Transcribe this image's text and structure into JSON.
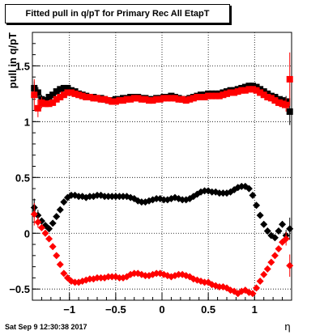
{
  "title": "Fitted pull in q/pT for Primary Rec All EtapT",
  "footer": "Sat Sep  9 12:30:38 2017",
  "chart_data": {
    "type": "scatter",
    "title": "Fitted pull in q/pT for Primary Rec All EtapT",
    "xlabel": "η",
    "ylabel": "pull in q/pT",
    "xlim": [
      -1.4,
      1.4
    ],
    "ylim": [
      -0.6,
      1.8
    ],
    "x_ticks": [
      -1,
      -0.5,
      0,
      0.5,
      1
    ],
    "x_tick_labels": [
      "−1",
      "−0.5",
      "0",
      "0.5",
      "1"
    ],
    "y_ticks": [
      -0.5,
      0,
      0.5,
      1,
      1.5
    ],
    "y_tick_labels": [
      "−0.5",
      "0",
      "0.5",
      "1",
      "1.5"
    ],
    "grid": true,
    "series": [
      {
        "color": "#000000",
        "marker": "square",
        "x": [
          -1.38,
          -1.34,
          -1.3,
          -1.26,
          -1.22,
          -1.18,
          -1.14,
          -1.1,
          -1.06,
          -1.02,
          -0.98,
          -0.94,
          -0.9,
          -0.86,
          -0.82,
          -0.78,
          -0.74,
          -0.7,
          -0.66,
          -0.62,
          -0.58,
          -0.54,
          -0.5,
          -0.46,
          -0.42,
          -0.38,
          -0.34,
          -0.3,
          -0.26,
          -0.22,
          -0.18,
          -0.14,
          -0.1,
          -0.06,
          -0.02,
          0.02,
          0.06,
          0.1,
          0.14,
          0.18,
          0.22,
          0.26,
          0.3,
          0.34,
          0.38,
          0.42,
          0.46,
          0.5,
          0.54,
          0.58,
          0.62,
          0.66,
          0.7,
          0.74,
          0.78,
          0.82,
          0.86,
          0.9,
          0.94,
          0.98,
          1.02,
          1.06,
          1.1,
          1.14,
          1.18,
          1.22,
          1.26,
          1.3,
          1.34,
          1.38
        ],
        "y": [
          1.3,
          1.26,
          1.2,
          1.19,
          1.22,
          1.24,
          1.27,
          1.29,
          1.3,
          1.3,
          1.28,
          1.27,
          1.25,
          1.24,
          1.23,
          1.22,
          1.22,
          1.21,
          1.21,
          1.2,
          1.19,
          1.19,
          1.2,
          1.2,
          1.21,
          1.21,
          1.22,
          1.22,
          1.22,
          1.21,
          1.21,
          1.2,
          1.2,
          1.21,
          1.21,
          1.22,
          1.22,
          1.23,
          1.22,
          1.21,
          1.2,
          1.2,
          1.21,
          1.22,
          1.23,
          1.24,
          1.24,
          1.25,
          1.25,
          1.25,
          1.25,
          1.26,
          1.27,
          1.28,
          1.28,
          1.29,
          1.3,
          1.31,
          1.32,
          1.32,
          1.31,
          1.29,
          1.27,
          1.25,
          1.23,
          1.22,
          1.2,
          1.19,
          1.18,
          1.09
        ],
        "err": [
          0.06,
          0.05,
          0.04,
          0.03,
          0.02,
          0.02,
          0.02,
          0.02,
          0.02,
          0.02,
          0.02,
          0.02,
          0.02,
          0.02,
          0.02,
          0.02,
          0.02,
          0.02,
          0.02,
          0.02,
          0.02,
          0.02,
          0.02,
          0.02,
          0.02,
          0.02,
          0.02,
          0.02,
          0.02,
          0.02,
          0.02,
          0.02,
          0.02,
          0.02,
          0.02,
          0.02,
          0.02,
          0.02,
          0.02,
          0.02,
          0.02,
          0.02,
          0.02,
          0.02,
          0.02,
          0.02,
          0.02,
          0.02,
          0.02,
          0.02,
          0.02,
          0.02,
          0.02,
          0.02,
          0.02,
          0.02,
          0.02,
          0.02,
          0.02,
          0.02,
          0.02,
          0.02,
          0.02,
          0.02,
          0.02,
          0.02,
          0.03,
          0.04,
          0.05,
          0.12
        ]
      },
      {
        "color": "#ff0000",
        "marker": "square",
        "x": [
          -1.38,
          -1.34,
          -1.3,
          -1.26,
          -1.22,
          -1.18,
          -1.14,
          -1.1,
          -1.06,
          -1.02,
          -0.98,
          -0.94,
          -0.9,
          -0.86,
          -0.82,
          -0.78,
          -0.74,
          -0.7,
          -0.66,
          -0.62,
          -0.58,
          -0.54,
          -0.5,
          -0.46,
          -0.42,
          -0.38,
          -0.34,
          -0.3,
          -0.26,
          -0.22,
          -0.18,
          -0.14,
          -0.1,
          -0.06,
          -0.02,
          0.02,
          0.06,
          0.1,
          0.14,
          0.18,
          0.22,
          0.26,
          0.3,
          0.34,
          0.38,
          0.42,
          0.46,
          0.5,
          0.54,
          0.58,
          0.62,
          0.66,
          0.7,
          0.74,
          0.78,
          0.82,
          0.86,
          0.9,
          0.94,
          0.98,
          1.02,
          1.06,
          1.1,
          1.14,
          1.18,
          1.22,
          1.26,
          1.3,
          1.34,
          1.38
        ],
        "y": [
          1.24,
          1.12,
          1.17,
          1.16,
          1.16,
          1.17,
          1.2,
          1.22,
          1.24,
          1.26,
          1.26,
          1.25,
          1.24,
          1.23,
          1.22,
          1.22,
          1.21,
          1.21,
          1.2,
          1.2,
          1.19,
          1.18,
          1.18,
          1.19,
          1.19,
          1.2,
          1.2,
          1.21,
          1.21,
          1.2,
          1.2,
          1.19,
          1.19,
          1.2,
          1.2,
          1.21,
          1.21,
          1.21,
          1.21,
          1.2,
          1.2,
          1.19,
          1.2,
          1.21,
          1.22,
          1.22,
          1.22,
          1.23,
          1.23,
          1.23,
          1.23,
          1.24,
          1.25,
          1.26,
          1.26,
          1.27,
          1.28,
          1.28,
          1.29,
          1.29,
          1.28,
          1.26,
          1.24,
          1.22,
          1.21,
          1.19,
          1.17,
          1.16,
          1.15,
          1.38
        ],
        "err": [
          0.14,
          0.08,
          0.05,
          0.03,
          0.02,
          0.02,
          0.02,
          0.02,
          0.02,
          0.02,
          0.02,
          0.02,
          0.02,
          0.02,
          0.02,
          0.02,
          0.02,
          0.02,
          0.02,
          0.02,
          0.02,
          0.02,
          0.02,
          0.02,
          0.02,
          0.02,
          0.02,
          0.02,
          0.02,
          0.02,
          0.02,
          0.02,
          0.02,
          0.02,
          0.02,
          0.02,
          0.02,
          0.02,
          0.02,
          0.02,
          0.02,
          0.02,
          0.02,
          0.02,
          0.02,
          0.02,
          0.02,
          0.02,
          0.02,
          0.02,
          0.02,
          0.02,
          0.02,
          0.02,
          0.02,
          0.02,
          0.02,
          0.02,
          0.02,
          0.02,
          0.02,
          0.02,
          0.02,
          0.02,
          0.02,
          0.02,
          0.03,
          0.04,
          0.06,
          0.24
        ]
      },
      {
        "color": "#000000",
        "marker": "diamond",
        "x": [
          -1.38,
          -1.34,
          -1.3,
          -1.26,
          -1.22,
          -1.18,
          -1.14,
          -1.1,
          -1.06,
          -1.02,
          -0.98,
          -0.94,
          -0.9,
          -0.86,
          -0.82,
          -0.78,
          -0.74,
          -0.7,
          -0.66,
          -0.62,
          -0.58,
          -0.54,
          -0.5,
          -0.46,
          -0.42,
          -0.38,
          -0.34,
          -0.3,
          -0.26,
          -0.22,
          -0.18,
          -0.14,
          -0.1,
          -0.06,
          -0.02,
          0.02,
          0.06,
          0.1,
          0.14,
          0.18,
          0.22,
          0.26,
          0.3,
          0.34,
          0.38,
          0.42,
          0.46,
          0.5,
          0.54,
          0.58,
          0.62,
          0.66,
          0.7,
          0.74,
          0.78,
          0.82,
          0.86,
          0.9,
          0.94,
          0.98,
          1.02,
          1.06,
          1.1,
          1.14,
          1.18,
          1.22,
          1.26,
          1.3,
          1.34,
          1.38
        ],
        "y": [
          0.23,
          0.16,
          0.11,
          0.07,
          0.04,
          0.09,
          0.15,
          0.21,
          0.28,
          0.32,
          0.34,
          0.34,
          0.33,
          0.33,
          0.32,
          0.33,
          0.33,
          0.34,
          0.34,
          0.33,
          0.33,
          0.33,
          0.33,
          0.33,
          0.33,
          0.33,
          0.32,
          0.31,
          0.29,
          0.28,
          0.28,
          0.29,
          0.3,
          0.31,
          0.31,
          0.3,
          0.3,
          0.31,
          0.32,
          0.31,
          0.3,
          0.3,
          0.31,
          0.33,
          0.35,
          0.37,
          0.38,
          0.38,
          0.37,
          0.37,
          0.36,
          0.36,
          0.36,
          0.37,
          0.39,
          0.41,
          0.42,
          0.42,
          0.4,
          0.34,
          0.25,
          0.16,
          0.08,
          0.02,
          -0.02,
          -0.04,
          0.02,
          0.08,
          -0.02,
          0.04
        ],
        "err": [
          0.08,
          0.05,
          0.03,
          0.02,
          0.02,
          0.02,
          0.02,
          0.01,
          0.01,
          0.01,
          0.01,
          0.01,
          0.01,
          0.01,
          0.01,
          0.01,
          0.01,
          0.01,
          0.01,
          0.01,
          0.01,
          0.01,
          0.01,
          0.01,
          0.01,
          0.01,
          0.01,
          0.01,
          0.01,
          0.01,
          0.01,
          0.01,
          0.01,
          0.01,
          0.01,
          0.01,
          0.01,
          0.01,
          0.01,
          0.01,
          0.01,
          0.01,
          0.01,
          0.01,
          0.01,
          0.01,
          0.01,
          0.01,
          0.01,
          0.01,
          0.01,
          0.01,
          0.01,
          0.01,
          0.01,
          0.01,
          0.01,
          0.01,
          0.01,
          0.01,
          0.01,
          0.01,
          0.01,
          0.02,
          0.02,
          0.02,
          0.02,
          0.03,
          0.05,
          0.1
        ]
      },
      {
        "color": "#ff0000",
        "marker": "diamond",
        "x": [
          -1.38,
          -1.34,
          -1.3,
          -1.26,
          -1.22,
          -1.18,
          -1.14,
          -1.1,
          -1.06,
          -1.02,
          -0.98,
          -0.94,
          -0.9,
          -0.86,
          -0.82,
          -0.78,
          -0.74,
          -0.7,
          -0.66,
          -0.62,
          -0.58,
          -0.54,
          -0.5,
          -0.46,
          -0.42,
          -0.38,
          -0.34,
          -0.3,
          -0.26,
          -0.22,
          -0.18,
          -0.14,
          -0.1,
          -0.06,
          -0.02,
          0.02,
          0.06,
          0.1,
          0.14,
          0.18,
          0.22,
          0.26,
          0.3,
          0.34,
          0.38,
          0.42,
          0.46,
          0.5,
          0.54,
          0.58,
          0.62,
          0.66,
          0.7,
          0.74,
          0.78,
          0.82,
          0.86,
          0.9,
          0.94,
          0.98,
          1.02,
          1.06,
          1.1,
          1.14,
          1.18,
          1.22,
          1.26,
          1.3,
          1.34,
          1.38
        ],
        "y": [
          0.17,
          0.1,
          0.05,
          0.0,
          -0.05,
          -0.12,
          -0.2,
          -0.28,
          -0.36,
          -0.4,
          -0.43,
          -0.44,
          -0.44,
          -0.43,
          -0.42,
          -0.41,
          -0.41,
          -0.4,
          -0.4,
          -0.4,
          -0.39,
          -0.39,
          -0.39,
          -0.4,
          -0.4,
          -0.39,
          -0.37,
          -0.36,
          -0.36,
          -0.37,
          -0.38,
          -0.38,
          -0.37,
          -0.36,
          -0.36,
          -0.37,
          -0.38,
          -0.39,
          -0.38,
          -0.37,
          -0.37,
          -0.38,
          -0.39,
          -0.41,
          -0.42,
          -0.43,
          -0.44,
          -0.44,
          -0.46,
          -0.47,
          -0.48,
          -0.48,
          -0.49,
          -0.51,
          -0.52,
          -0.54,
          -0.52,
          -0.51,
          -0.53,
          -0.54,
          -0.49,
          -0.43,
          -0.37,
          -0.32,
          -0.26,
          -0.2,
          -0.14,
          -0.08,
          -0.05,
          -0.29
        ],
        "err": [
          0.1,
          0.05,
          0.03,
          0.02,
          0.02,
          0.02,
          0.02,
          0.01,
          0.01,
          0.01,
          0.01,
          0.01,
          0.01,
          0.01,
          0.01,
          0.01,
          0.01,
          0.01,
          0.01,
          0.01,
          0.01,
          0.01,
          0.01,
          0.01,
          0.01,
          0.01,
          0.01,
          0.01,
          0.01,
          0.01,
          0.01,
          0.01,
          0.01,
          0.01,
          0.01,
          0.01,
          0.01,
          0.01,
          0.01,
          0.01,
          0.01,
          0.01,
          0.01,
          0.01,
          0.01,
          0.01,
          0.01,
          0.01,
          0.01,
          0.01,
          0.01,
          0.01,
          0.01,
          0.01,
          0.01,
          0.01,
          0.01,
          0.01,
          0.01,
          0.01,
          0.01,
          0.01,
          0.01,
          0.02,
          0.02,
          0.02,
          0.02,
          0.03,
          0.06,
          0.1
        ]
      }
    ]
  }
}
